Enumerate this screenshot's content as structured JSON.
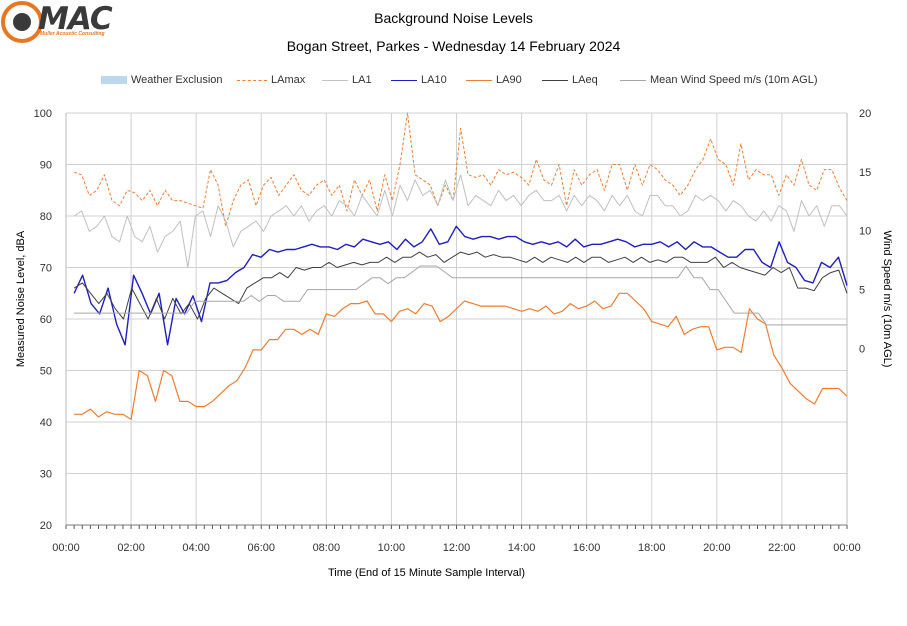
{
  "logo": {
    "text": "MAC",
    "subtitle": "Muller Acoustic Consulting"
  },
  "title_line1": "Background Noise Levels",
  "title_line2": "Bogan Street, Parkes - Wednesday 14 February 2024",
  "legend": [
    {
      "label": "Weather Exclusion",
      "color": "#bdd7ee",
      "style": "box"
    },
    {
      "label": "LAmax",
      "color": "#ed7d31",
      "style": "dashed"
    },
    {
      "label": "LA1",
      "color": "#c0c0c0",
      "style": "solid"
    },
    {
      "label": "LA10",
      "color": "#1f1fbf",
      "style": "solid"
    },
    {
      "label": "LA90",
      "color": "#ed7d31",
      "style": "solid"
    },
    {
      "label": "LAeq",
      "color": "#404040",
      "style": "solid"
    },
    {
      "label": "Mean Wind Speed m/s (10m AGL)",
      "color": "#a6a6a6",
      "style": "solid"
    }
  ],
  "chart_data": {
    "type": "line",
    "xlabel": "Time (End of 15 Minute Sample Interval)",
    "ylabel": "Measured Noise Level, dBA",
    "y2label": "Wind Speed m/s (10m AGL)",
    "ylim": [
      20,
      100
    ],
    "yticks": [
      20,
      30,
      40,
      50,
      60,
      70,
      80,
      90,
      100
    ],
    "y2lim": [
      -15,
      20
    ],
    "y2ticks": [
      0,
      5,
      10,
      15,
      20
    ],
    "xlim_hours": [
      0,
      24
    ],
    "xticks": [
      "00:00",
      "02:00",
      "04:00",
      "06:00",
      "08:00",
      "10:00",
      "12:00",
      "14:00",
      "16:00",
      "18:00",
      "20:00",
      "22:00",
      "00:00"
    ],
    "grid": true,
    "series": [
      {
        "name": "LAmax",
        "color": "#ed7d31",
        "dash": "3,2",
        "width": 1,
        "axis": "left",
        "values": [
          88.5,
          88,
          84,
          85,
          88,
          83,
          82,
          85,
          84.5,
          83,
          85,
          82,
          85,
          83,
          83,
          82.5,
          82,
          81.5,
          89,
          86,
          78,
          83,
          86,
          87,
          82,
          86,
          87.5,
          84,
          86,
          88,
          85,
          84,
          86,
          87,
          84,
          86,
          81,
          87,
          84,
          87,
          81,
          88,
          83,
          90,
          100,
          88,
          87,
          86,
          82,
          86,
          83,
          97,
          88,
          87.5,
          88,
          86,
          89,
          88,
          88.5,
          87.5,
          86,
          91,
          87,
          86,
          90,
          82,
          89,
          86,
          88,
          89,
          85,
          90,
          90,
          85,
          90,
          86,
          90,
          89,
          87,
          86,
          84,
          86,
          89,
          91,
          95,
          91,
          90,
          86,
          94,
          87,
          89,
          88,
          88,
          84,
          88,
          86,
          91,
          86,
          85,
          89,
          89,
          85.5,
          83
        ]
      },
      {
        "name": "LA1",
        "color": "#c0c0c0",
        "dash": "",
        "width": 1,
        "axis": "left",
        "values": [
          80,
          81,
          77,
          78,
          80,
          76,
          75,
          80,
          76,
          75,
          78,
          73,
          76,
          77,
          79,
          70,
          80,
          81,
          76,
          82,
          79,
          74,
          77,
          78,
          79,
          77,
          80,
          81,
          82,
          80,
          82,
          79,
          81,
          82,
          80,
          83,
          82,
          80,
          84,
          82,
          80,
          85,
          80,
          86,
          83,
          87,
          84,
          85,
          82,
          87,
          83,
          88,
          82,
          84,
          83,
          82,
          85,
          83,
          84,
          82,
          84,
          85,
          83,
          83,
          84,
          81,
          84,
          82,
          84,
          83,
          81,
          84,
          82,
          84,
          81,
          80,
          84,
          84,
          82,
          82,
          80,
          81,
          84,
          83,
          84,
          83,
          81,
          83,
          82,
          80,
          79,
          81,
          79,
          82,
          81,
          77,
          83,
          80,
          82,
          78,
          82,
          82,
          80
        ]
      },
      {
        "name": "LA10",
        "color": "#1f1fbf",
        "dash": "",
        "width": 1.4,
        "axis": "left",
        "values": [
          65,
          68.5,
          63,
          61,
          66,
          59,
          55,
          68.5,
          65,
          61,
          65,
          55,
          64,
          61,
          64.5,
          59.5,
          67,
          67,
          67.5,
          69,
          70,
          72.5,
          72,
          73.5,
          73,
          73.5,
          73.5,
          74,
          74.5,
          74,
          74,
          73.5,
          74.5,
          74,
          75.5,
          75,
          74.5,
          75,
          73.5,
          75.5,
          74,
          75,
          77.5,
          74.5,
          75,
          78,
          76,
          75.5,
          76,
          76,
          75.5,
          76,
          76,
          75,
          74.5,
          75,
          74.5,
          75,
          74,
          75.5,
          74,
          74.5,
          74.5,
          75,
          75.5,
          75,
          74,
          74.5,
          74.5,
          75,
          74,
          75,
          73.5,
          75,
          74,
          74,
          73,
          72,
          72,
          73.5,
          73.5,
          71,
          70,
          75,
          71,
          70,
          67.5,
          67,
          71,
          70,
          72,
          66.5
        ]
      },
      {
        "name": "LA90",
        "color": "#ed7d31",
        "dash": "",
        "width": 1.2,
        "axis": "left",
        "values": [
          41.5,
          41.5,
          42.5,
          41,
          42,
          41.5,
          41.5,
          40.5,
          50,
          49,
          44,
          50,
          49,
          44,
          44,
          43,
          43,
          44,
          45.5,
          47,
          48,
          50.5,
          54,
          54,
          56,
          56,
          58,
          58,
          57,
          58,
          57,
          61,
          60.5,
          62,
          63,
          63,
          63.5,
          61,
          61,
          59.5,
          61.5,
          62,
          61,
          63,
          62.5,
          59.5,
          60.5,
          62,
          63.5,
          63,
          62.5,
          62.5,
          62.5,
          62.5,
          62,
          61.5,
          62,
          61.5,
          62.5,
          61,
          61.5,
          63,
          62,
          62.5,
          63.5,
          62,
          62.5,
          65,
          65,
          63.5,
          62,
          59.5,
          59,
          58.5,
          60.5,
          57,
          58,
          58.5,
          58.5,
          54,
          54.5,
          54.5,
          53.5,
          62,
          60,
          59,
          53,
          50.5,
          47.5,
          46,
          44.5,
          43.5,
          46.5,
          46.5,
          46.5,
          45
        ]
      },
      {
        "name": "LAeq",
        "color": "#404040",
        "dash": "",
        "width": 1,
        "axis": "left",
        "values": [
          66,
          67,
          65,
          63,
          65,
          62,
          60,
          66,
          63,
          60,
          64,
          60,
          64,
          61,
          63,
          60,
          64,
          66,
          65,
          64,
          63,
          66,
          67,
          68,
          68,
          69,
          68,
          70,
          69.5,
          70,
          70,
          71,
          70,
          70.5,
          71,
          70.5,
          71,
          71,
          72,
          71,
          72,
          72,
          73,
          72,
          72.5,
          71,
          72,
          73,
          72.5,
          73,
          72,
          72.5,
          72,
          72,
          71.5,
          71,
          72,
          71,
          72,
          71.5,
          71,
          72,
          71,
          72,
          72,
          71,
          71.5,
          72,
          71,
          72,
          71,
          71.5,
          71,
          72,
          72,
          71,
          71,
          71,
          72,
          70,
          71,
          70,
          69.5,
          69,
          68.5,
          70,
          69,
          70,
          66,
          66,
          65.5,
          68,
          69,
          69.5,
          65
        ]
      },
      {
        "name": "Mean Wind Speed m/s (10m AGL)",
        "color": "#a6a6a6",
        "dash": "",
        "width": 1,
        "axis": "right",
        "values": [
          3,
          3,
          3,
          3,
          3,
          3,
          3,
          3,
          3,
          3,
          3,
          3,
          3,
          3,
          3,
          4,
          4,
          4,
          4,
          4,
          4,
          4,
          4.5,
          4,
          4.5,
          4.5,
          4,
          4,
          4,
          5,
          5,
          5,
          5,
          5,
          5,
          5,
          5.5,
          6,
          6,
          5.5,
          6,
          6,
          6.5,
          7,
          7,
          7,
          6.5,
          6,
          6,
          6,
          6,
          6,
          6,
          6,
          6,
          6,
          6,
          6,
          6,
          6,
          6,
          6,
          6,
          6,
          6,
          6,
          6,
          6,
          6,
          6,
          6,
          6,
          6,
          6,
          6,
          6,
          7,
          6,
          6,
          5,
          5,
          4,
          3,
          3,
          3,
          3,
          2,
          2,
          2,
          2,
          2,
          2,
          2,
          2,
          2,
          2,
          2
        ]
      }
    ]
  }
}
